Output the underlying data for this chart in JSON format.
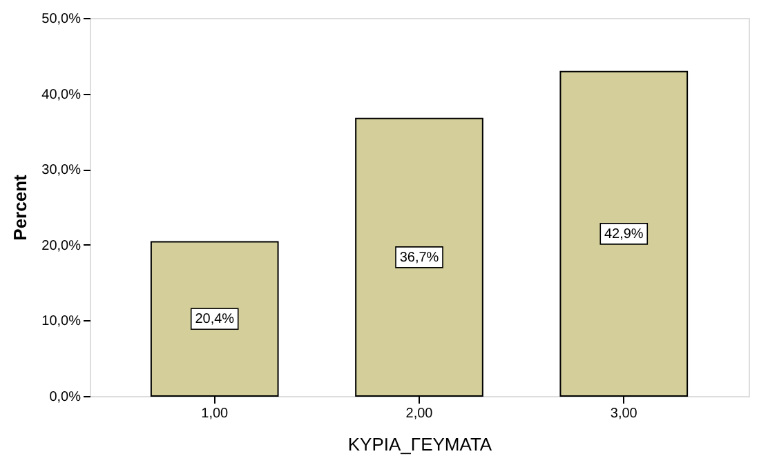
{
  "chart_data": {
    "type": "bar",
    "xlabel": "ΚΥΡΙΑ_ΓΕΥΜΑΤΑ",
    "ylabel": "Percent",
    "categories": [
      "1,00",
      "2,00",
      "3,00"
    ],
    "values": [
      20.4,
      36.7,
      42.9
    ],
    "value_labels": [
      "20,4%",
      "36,7%",
      "42,9%"
    ],
    "color": "#d3ce9a",
    "ylim": [
      0,
      50
    ],
    "yticks": [
      {
        "value": 0,
        "label": "0,0%"
      },
      {
        "value": 10,
        "label": "10,0%"
      },
      {
        "value": 20,
        "label": "20,0%"
      },
      {
        "value": 30,
        "label": "30,0%"
      },
      {
        "value": 40,
        "label": "40,0%"
      },
      {
        "value": 50,
        "label": "50,0%"
      }
    ],
    "grid": false
  }
}
